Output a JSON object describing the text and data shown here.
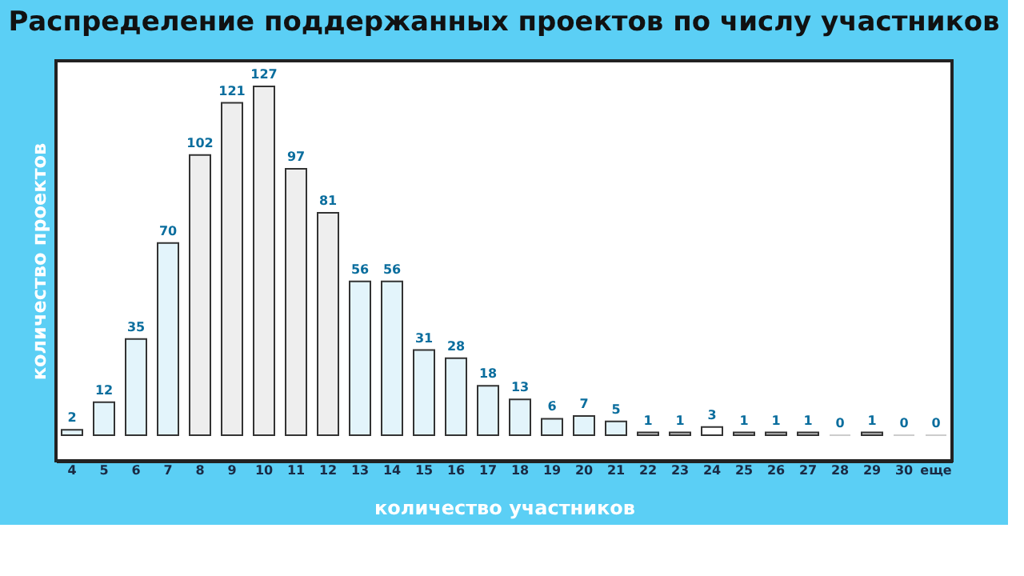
{
  "chart_data": {
    "type": "bar",
    "title": "Распределение поддержанных проектов по числу участников",
    "xlabel": "количество участников",
    "ylabel": "количество проектов",
    "categories": [
      "4",
      "5",
      "6",
      "7",
      "8",
      "9",
      "10",
      "11",
      "12",
      "13",
      "14",
      "15",
      "16",
      "17",
      "18",
      "19",
      "20",
      "21",
      "22",
      "23",
      "24",
      "25",
      "26",
      "27",
      "28",
      "29",
      "30",
      "еще"
    ],
    "values": [
      2,
      12,
      35,
      70,
      102,
      121,
      127,
      97,
      81,
      56,
      56,
      31,
      28,
      18,
      13,
      6,
      7,
      5,
      1,
      1,
      3,
      1,
      1,
      1,
      0,
      1,
      0,
      0
    ],
    "colors": [
      "#e3f4fb",
      "#e3f4fb",
      "#e3f4fb",
      "#e3f4fb",
      "#eeeeee",
      "#eeeeee",
      "#eeeeee",
      "#eeeeee",
      "#eeeeee",
      "#e3f4fb",
      "#e3f4fb",
      "#e3f4fb",
      "#e3f4fb",
      "#e3f4fb",
      "#e3f4fb",
      "#e3f4fb",
      "#e3f4fb",
      "#e3f4fb",
      "#cccccc",
      "#cccccc",
      "#ffffff",
      "#cccccc",
      "#cccccc",
      "#cccccc",
      "#cccccc",
      "#cccccc",
      "#cccccc",
      "#cccccc"
    ],
    "data_labels": true,
    "tick_labels": "x"
  }
}
